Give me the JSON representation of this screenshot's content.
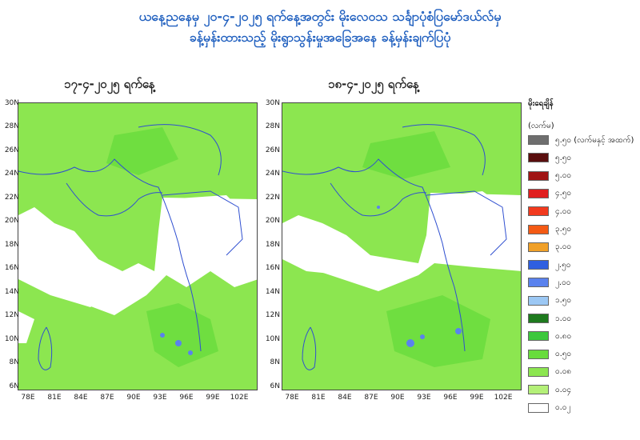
{
  "header": {
    "line1": "ယနေ့ညနေမှ ၂၀-၄-၂၀၂၅ ရက်နေ့အတွင်း မိုးလေဝသ သင်္ချာပုံစံပြမော်ဒယ်လ်မှ",
    "line2": "ခန့်မှန်းထားသည့် မိုးရွာသွန်းမှုအခြေအနေ ခန့်မှန်းချက်ပြပုံ"
  },
  "maps": [
    {
      "date_label": "၁၇-၄-၂၀၂၅ ရက်နေ့"
    },
    {
      "date_label": "၁၈-၄-၂၀၂၅ ရက်နေ့"
    }
  ],
  "axes": {
    "lat_ticks": [
      "30N",
      "28N",
      "26N",
      "24N",
      "22N",
      "20N",
      "18N",
      "16N",
      "14N",
      "12N",
      "10N",
      "8N",
      "6N"
    ],
    "lon_ticks": [
      "78E",
      "81E",
      "84E",
      "87E",
      "90E",
      "93E",
      "96E",
      "99E",
      "102E"
    ]
  },
  "legend": {
    "title": "မိုးရေချိန်",
    "unit": "(လက်မ)",
    "items": [
      {
        "label": "၅.၅၀ (လက်မနှင့် အထက်)",
        "color": "#6e6e6e"
      },
      {
        "label": "၅.၅၀",
        "color": "#5a0e0e"
      },
      {
        "label": "၅.၀၀",
        "color": "#a01414"
      },
      {
        "label": "၄.၅၀",
        "color": "#e01e1e"
      },
      {
        "label": "၄.၀၀",
        "color": "#f23a1e"
      },
      {
        "label": "၃.၅၀",
        "color": "#f45a14"
      },
      {
        "label": "၃.၀၀",
        "color": "#f0a028"
      },
      {
        "label": "၂.၅၀",
        "color": "#2f5fe0"
      },
      {
        "label": "၂.၀၀",
        "color": "#5a82ee"
      },
      {
        "label": "၁.၅၀",
        "color": "#9cc8f4"
      },
      {
        "label": "၁.၀၀",
        "color": "#1e7a1e"
      },
      {
        "label": "၀.၈၀",
        "color": "#3cc83c"
      },
      {
        "label": "၀.၅၀",
        "color": "#68dc3c"
      },
      {
        "label": "၀.၀၈",
        "color": "#8ce650"
      },
      {
        "label": "၀.၀၄",
        "color": "#b4f078"
      },
      {
        "label": "၀.၀၂",
        "color": "#ffffff"
      }
    ]
  }
}
